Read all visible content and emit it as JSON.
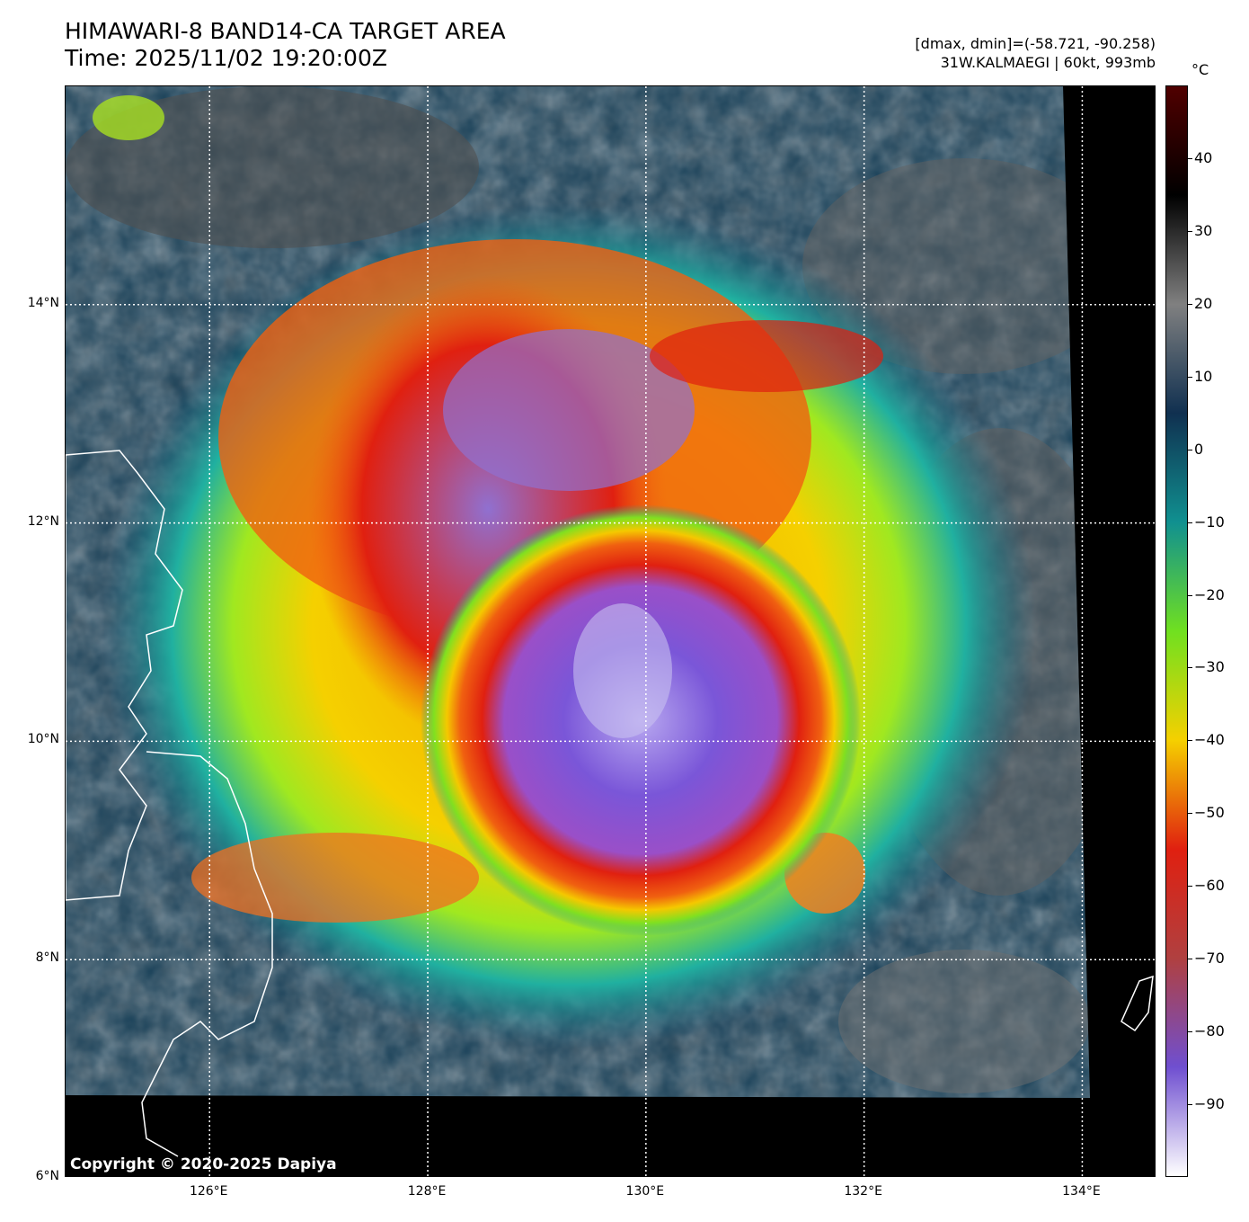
{
  "header": {
    "title_line1": "HIMAWARI-8 BAND14-CA TARGET AREA",
    "title_line2": "Time: 2025/11/02 19:20:00Z",
    "range_text": "[dmax, dmin]=(-58.721, -90.258)",
    "storm_text": "31W.KALMAEGI | 60kt, 993mb"
  },
  "map": {
    "lon_range": [
      124.68,
      134.68
    ],
    "lat_range": [
      6.0,
      16.0
    ],
    "lat_labels": [
      {
        "lat": 14,
        "label": "14°N"
      },
      {
        "lat": 12,
        "label": "12°N"
      },
      {
        "lat": 10,
        "label": "10°N"
      },
      {
        "lat": 8,
        "label": "8°N"
      },
      {
        "lat": 6,
        "label": "6°N"
      }
    ],
    "lon_labels": [
      {
        "lon": 126,
        "label": "126°E"
      },
      {
        "lon": 128,
        "label": "128°E"
      },
      {
        "lon": 130,
        "label": "130°E"
      },
      {
        "lon": 132,
        "label": "132°E"
      },
      {
        "lon": 134,
        "label": "134°E"
      }
    ],
    "copyright": "Copyright © 2020-2025 Dapiya"
  },
  "colorbar": {
    "unit": "°C",
    "range": [
      -100,
      50
    ],
    "ticks": [
      {
        "v": 40,
        "label": "40"
      },
      {
        "v": 30,
        "label": "30"
      },
      {
        "v": 20,
        "label": "20"
      },
      {
        "v": 10,
        "label": "10"
      },
      {
        "v": 0,
        "label": "0"
      },
      {
        "v": -10,
        "label": "−10"
      },
      {
        "v": -20,
        "label": "−20"
      },
      {
        "v": -30,
        "label": "−30"
      },
      {
        "v": -40,
        "label": "−40"
      },
      {
        "v": -50,
        "label": "−50"
      },
      {
        "v": -60,
        "label": "−60"
      },
      {
        "v": -70,
        "label": "−70"
      },
      {
        "v": -80,
        "label": "−80"
      },
      {
        "v": -90,
        "label": "−90"
      }
    ],
    "colors": [
      "#ffffff",
      "#6f4fd0",
      "#b04040",
      "#e02010",
      "#f5d000",
      "#70e020",
      "#109090",
      "#103050",
      "#808080",
      "#000000",
      "#500000"
    ]
  }
}
